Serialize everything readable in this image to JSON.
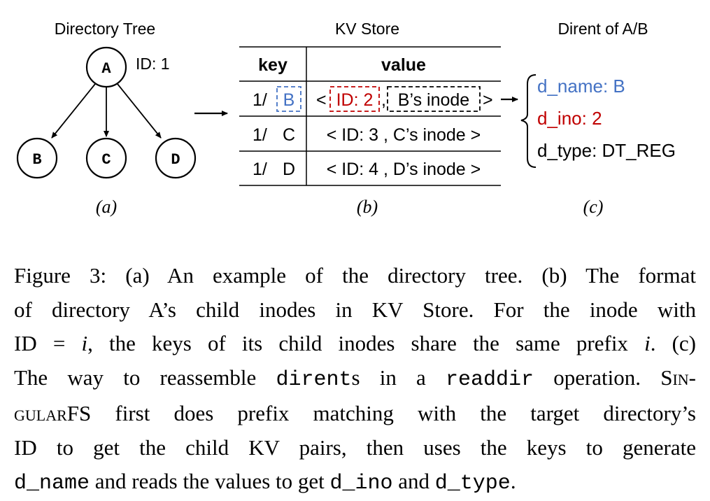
{
  "panel_a": {
    "title": "Directory Tree",
    "root": "A",
    "root_id": "ID: 1",
    "children": [
      "B",
      "C",
      "D"
    ],
    "sublabel": "(a)"
  },
  "panel_b": {
    "title": "KV Store",
    "col_key": "key",
    "col_value": "value",
    "rows": [
      {
        "key_prefix": "1/",
        "key_name": "B",
        "value_open": "<",
        "value_id": "ID: 2",
        "value_sep": ",",
        "value_inode": "B’s inode",
        "value_close": ">"
      },
      {
        "key_prefix": "1/",
        "key_name": "C",
        "value": "< ID: 3 , C’s inode >"
      },
      {
        "key_prefix": "1/",
        "key_name": "D",
        "value": "< ID: 4 , D’s inode >"
      }
    ],
    "sublabel": "(b)"
  },
  "panel_c": {
    "title": "Dirent of A/B",
    "fields": [
      {
        "text": "d_name: B",
        "color": "#4472c4"
      },
      {
        "text": "d_ino: 2",
        "color": "#c00000"
      },
      {
        "text": "d_type: DT_REG",
        "color": "#000000"
      }
    ],
    "sublabel": "(c)"
  },
  "colors": {
    "blue": "#4472c4",
    "red": "#c00000"
  },
  "caption": {
    "l1": "Figure 3:  (a) An example of the directory tree. (b) The format",
    "l2": "of directory A’s child inodes in KV Store. For the inode with",
    "l3_a": "ID = ",
    "l3_i1": "i",
    "l3_b": ", the keys of its child inodes share the same prefix ",
    "l3_i2": "i",
    "l3_c": ". (c)",
    "l4_a": "The way to reassemble ",
    "l4_code1": "dirent",
    "l4_b": "s in a ",
    "l4_code2": "readdir",
    "l4_c": " operation. S",
    "l4_sc": "in-",
    "l5_sc": "gular",
    "l5_a": "FS first does prefix matching with the target directory’s",
    "l6": "ID to get the child KV pairs, then uses the keys to generate",
    "l7_code1": "d_name",
    "l7_a": " and reads the values to get ",
    "l7_code2": "d_ino",
    "l7_b": " and ",
    "l7_code3": "d_type",
    "l7_c": "."
  }
}
